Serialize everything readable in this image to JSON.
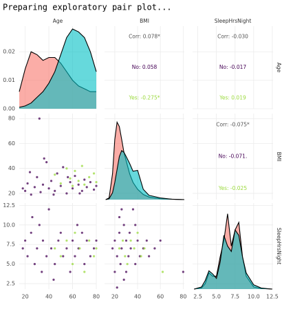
{
  "header": "Preparing exploratory pair plot...",
  "chart_data": {
    "type": "pairplot",
    "grid": true,
    "variables": [
      {
        "name": "Age",
        "xlim": [
          15,
          80
        ],
        "xticks": [
          20,
          40,
          60,
          80
        ]
      },
      {
        "name": "BMI",
        "xlim": [
          11,
          81
        ],
        "xticks": [
          20,
          40,
          60,
          80
        ],
        "ylim": [
          15,
          84
        ],
        "yticks": [
          20,
          40,
          60,
          80
        ]
      },
      {
        "name": "SleepHrsNight",
        "xlim": [
          1.8,
          12.6
        ],
        "xticks": [
          2.5,
          {
            "value": 5,
            "label": "5.0"
          },
          7.5,
          {
            "value": 10,
            "label": "10.0"
          },
          12.5
        ],
        "ylim": [
          1.8,
          12.8
        ],
        "yticks": [
          2.5,
          {
            "value": 5,
            "label": "5.0"
          },
          7.5,
          {
            "value": 10,
            "label": "10.0"
          },
          12.5
        ]
      }
    ],
    "densities": [
      {
        "x": [
          15,
          20,
          25,
          30,
          35,
          40,
          45,
          50,
          55,
          60,
          65,
          70,
          75,
          80
        ],
        "ylim": [
          0,
          0.029
        ],
        "yticks": [
          {
            "value": 0,
            "label": "0.00"
          },
          {
            "value": 0.01,
            "label": "0.01"
          },
          {
            "value": 0.02,
            "label": "0.02"
          }
        ],
        "series": [
          {
            "color": "#f8766d",
            "values": [
              0.006,
              0.014,
              0.02,
              0.019,
              0.017,
              0.018,
              0.018,
              0.016,
              0.013,
              0.01,
              0.008,
              0.007,
              0.006,
              0.006
            ]
          },
          {
            "color": "#00bfc4",
            "values": [
              0.0005,
              0.001,
              0.002,
              0.004,
              0.006,
              0.009,
              0.013,
              0.019,
              0.025,
              0.028,
              0.027,
              0.025,
              0.02,
              0.013
            ]
          }
        ]
      },
      {
        "x": [
          12,
          15,
          18,
          20,
          22,
          24,
          26,
          28,
          30,
          33,
          36,
          40,
          45,
          50,
          60,
          70,
          81
        ],
        "ylim": [
          0,
          0.1
        ],
        "series": [
          {
            "color": "#f8766d",
            "values": [
              0,
              0.002,
              0.03,
              0.07,
              0.09,
              0.085,
              0.07,
              0.055,
              0.045,
              0.03,
              0.02,
              0.012,
              0.006,
              0.003,
              0.001,
              0.0005,
              0
            ]
          },
          {
            "color": "#00bfc4",
            "values": [
              0,
              0.001,
              0.008,
              0.02,
              0.035,
              0.05,
              0.057,
              0.055,
              0.05,
              0.042,
              0.033,
              0.034,
              0.012,
              0.005,
              0.002,
              0.0005,
              0
            ]
          }
        ]
      },
      {
        "x": [
          2,
          3,
          3.5,
          4,
          4.5,
          5,
          5.5,
          6,
          6.5,
          7,
          7.5,
          8,
          8.5,
          9,
          10,
          11,
          12,
          12.5
        ],
        "ylim": [
          0,
          0.8
        ],
        "series": [
          {
            "color": "#f8766d",
            "values": [
              0,
              0.01,
              0.05,
              0.15,
              0.12,
              0.12,
              0.3,
              0.45,
              0.7,
              0.4,
              0.55,
              0.62,
              0.3,
              0.12,
              0.02,
              0.005,
              0.002,
              0
            ]
          },
          {
            "color": "#00bfc4",
            "values": [
              0,
              0.02,
              0.08,
              0.17,
              0.14,
              0.1,
              0.25,
              0.5,
              0.4,
              0.35,
              0.55,
              0.5,
              0.3,
              0.15,
              0.04,
              0.01,
              0.003,
              0
            ]
          }
        ]
      }
    ],
    "scatters": [
      {
        "series": [
          {
            "color": "#440154",
            "x": [
              20,
              22,
              25,
              28,
              30,
              33,
              35,
              38,
              40,
              42,
              45,
              47,
              50,
              52,
              55,
              58,
              60,
              62,
              65,
              68,
              70,
              72,
              75,
              78,
              80,
              24,
              36,
              44,
              56,
              66,
              18,
              32
            ],
            "y": [
              22,
              28,
              19,
              25,
              33,
              21,
              27,
              45,
              24,
              30,
              22,
              36,
              26,
              41,
              20,
              29,
              24,
              34,
              27,
              22,
              31,
              25,
              29,
              23,
              26,
              37,
              48,
              19,
              33,
              20,
              24,
              80
            ]
          },
          {
            "color": "#9ad93c",
            "x": [
              45,
              50,
              55,
              58,
              60,
              62,
              65,
              68,
              70,
              74,
              78,
              80
            ],
            "y": [
              35,
              28,
              40,
              32,
              26,
              38,
              30,
              42,
              27,
              33,
              36,
              29
            ]
          }
        ]
      },
      {
        "series": [
          {
            "color": "#440154",
            "x": [
              18,
              20,
              22,
              25,
              28,
              30,
              32,
              35,
              38,
              40,
              42,
              45,
              48,
              50,
              52,
              55,
              58,
              60,
              62,
              65,
              68,
              70,
              72,
              75,
              78,
              80,
              26,
              44,
              64,
              34
            ],
            "y": [
              7,
              8,
              6,
              9,
              5,
              7,
              10,
              8,
              6,
              12,
              7,
              5,
              8,
              9,
              6,
              7,
              4,
              8,
              6,
              7,
              9,
              5,
              8,
              6,
              7,
              8,
              11,
              3,
              10,
              4
            ]
          },
          {
            "color": "#9ad93c",
            "x": [
              45,
              50,
              55,
              60,
              62,
              66,
              70,
              74,
              78,
              80
            ],
            "y": [
              7,
              6,
              8,
              5,
              9,
              7,
              4,
              8,
              6,
              7
            ]
          }
        ]
      },
      {
        "series": [
          {
            "color": "#440154",
            "x": [
              18,
              20,
              22,
              24,
              25,
              26,
              28,
              30,
              32,
              34,
              36,
              38,
              40,
              42,
              45,
              48,
              50,
              55,
              60,
              20,
              24,
              28,
              33,
              38,
              22,
              26,
              30,
              80
            ],
            "y": [
              7,
              8,
              6,
              9,
              5,
              7,
              10,
              8,
              6,
              7,
              12,
              5,
              8,
              6,
              7,
              8,
              6,
              7,
              8,
              4,
              11,
              3,
              9,
              10,
              2,
              12,
              4,
              4
            ]
          },
          {
            "color": "#9ad93c",
            "x": [
              24,
              27,
              29,
              31,
              34,
              37,
              40,
              43,
              46,
              62
            ],
            "y": [
              7,
              8,
              6,
              5,
              8,
              7,
              9,
              6,
              7,
              4
            ]
          }
        ]
      }
    ],
    "correlations": [
      {
        "texts": [
          "Corr: 0.078*",
          "No: 0.058",
          "Yes: -0.275*"
        ],
        "colors": [
          "#555555",
          "#440154",
          "#9ad93c"
        ]
      },
      {
        "texts": [
          "Corr: -0.030",
          "No: -0.017",
          "Yes: 0.019"
        ],
        "colors": [
          "#555555",
          "#440154",
          "#9ad93c"
        ]
      },
      {
        "texts": [
          "Corr: -0.075*",
          "No: -0.071.",
          "Yes: -0.025"
        ],
        "colors": [
          "#555555",
          "#440154",
          "#9ad93c"
        ]
      }
    ]
  }
}
